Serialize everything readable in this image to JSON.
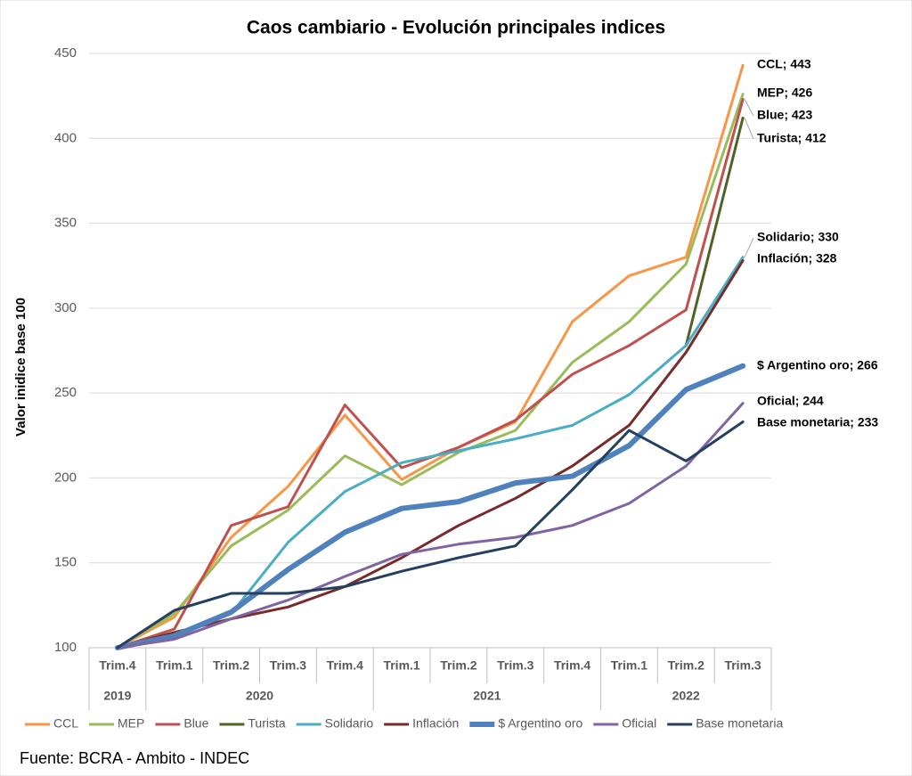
{
  "chart_data": {
    "type": "line",
    "title": "Caos cambiario - Evolución principales indices",
    "y_label": "Valor inidice base 100",
    "source": "Fuente: BCRA - Ambito - INDEC",
    "categories": [
      "Trim.4",
      "Trim.1",
      "Trim.2",
      "Trim.3",
      "Trim.4",
      "Trim.1",
      "Trim.2",
      "Trim.3",
      "Trim.4",
      "Trim.1",
      "Trim.2",
      "Trim.3"
    ],
    "years": [
      "2019",
      "2020",
      null,
      null,
      null,
      "2021",
      null,
      null,
      null,
      "2022",
      null,
      null
    ],
    "ylim": [
      100,
      450
    ],
    "yticks": [
      100,
      150,
      200,
      250,
      300,
      350,
      400,
      450
    ],
    "grid": true,
    "legend": "bottom",
    "series": [
      {
        "name": "CCL",
        "color": "#f79646",
        "values": [
          100,
          118,
          165,
          195,
          237,
          199,
          218,
          233,
          292,
          319,
          330,
          443
        ],
        "value_labels": [
          null,
          null,
          null,
          null,
          null,
          null,
          null,
          null,
          null,
          null,
          null,
          "CCL; 443"
        ]
      },
      {
        "name": "MEP",
        "color": "#9bbb59",
        "values": [
          100,
          120,
          160,
          181,
          213,
          196,
          215,
          228,
          268,
          292,
          326,
          426
        ],
        "value_labels": [
          null,
          null,
          null,
          null,
          null,
          null,
          null,
          null,
          null,
          null,
          null,
          "MEP; 426"
        ]
      },
      {
        "name": "Blue",
        "color": "#c0504d",
        "values": [
          100,
          111,
          172,
          183,
          243,
          206,
          218,
          234,
          261,
          278,
          299,
          423
        ],
        "value_labels": [
          null,
          null,
          null,
          null,
          null,
          null,
          null,
          null,
          null,
          null,
          null,
          "Blue; 423"
        ]
      },
      {
        "name": "Turista",
        "color": "#4f6228",
        "values": [
          null,
          null,
          null,
          null,
          null,
          null,
          null,
          null,
          null,
          null,
          278,
          412
        ],
        "value_labels": [
          null,
          null,
          null,
          null,
          null,
          null,
          null,
          null,
          null,
          null,
          null,
          "Turista; 412"
        ]
      },
      {
        "name": "Solidario",
        "color": "#4bacc6",
        "values": [
          100,
          107,
          120,
          162,
          192,
          209,
          216,
          223,
          231,
          249,
          278,
          330
        ],
        "value_labels": [
          null,
          null,
          null,
          null,
          null,
          null,
          null,
          null,
          null,
          null,
          null,
          "Solidario; 330"
        ]
      },
      {
        "name": "Inflación",
        "color": "#772c2a",
        "values": [
          100,
          109,
          117,
          124,
          136,
          153,
          172,
          188,
          207,
          231,
          274,
          328
        ],
        "value_labels": [
          null,
          null,
          null,
          null,
          null,
          null,
          null,
          null,
          null,
          null,
          null,
          "Inflación; 328"
        ]
      },
      {
        "name": "$ Argentino oro",
        "color": "#4f81bd",
        "highlight": true,
        "values": [
          100,
          107,
          121,
          146,
          168,
          182,
          186,
          197,
          201,
          219,
          252,
          266
        ],
        "value_labels": [
          null,
          null,
          null,
          null,
          null,
          null,
          null,
          null,
          null,
          null,
          null,
          "$ Argentino oro; 266"
        ]
      },
      {
        "name": "Oficial",
        "color": "#8064a2",
        "values": [
          100,
          105,
          117,
          128,
          142,
          155,
          161,
          165,
          172,
          185,
          207,
          244
        ],
        "value_labels": [
          null,
          null,
          null,
          null,
          null,
          null,
          null,
          null,
          null,
          null,
          null,
          "Oficial; 244"
        ]
      },
      {
        "name": "Base monetaria",
        "color": "#243f60",
        "values": [
          100,
          122,
          132,
          132,
          136,
          145,
          153,
          160,
          193,
          228,
          210,
          233
        ],
        "value_labels": [
          null,
          null,
          null,
          null,
          null,
          null,
          null,
          null,
          null,
          null,
          null,
          "Base monetaria; 233"
        ]
      }
    ]
  }
}
